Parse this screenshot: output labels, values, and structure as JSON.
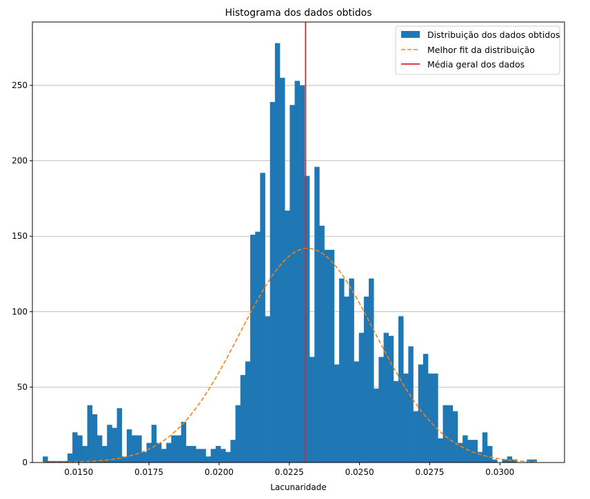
{
  "chart_data": {
    "type": "bar",
    "title": "Histograma dos dados obtidos",
    "xlabel": "Lacunaridade",
    "ylabel": "",
    "xlim": [
      0.01335,
      0.0323
    ],
    "ylim": [
      0,
      292
    ],
    "x_ticks": [
      0.015,
      0.0175,
      0.02,
      0.0225,
      0.025,
      0.0275,
      0.03
    ],
    "x_tick_labels": [
      "0.0150",
      "0.0175",
      "0.0200",
      "0.0225",
      "0.0250",
      "0.0275",
      "0.0300"
    ],
    "y_ticks": [
      0,
      50,
      100,
      150,
      200,
      250
    ],
    "y_tick_labels": [
      "0",
      "50",
      "100",
      "150",
      "200",
      "250"
    ],
    "grid": "horizontal",
    "legend_position": "top-right",
    "colors": {
      "bars": "#1f77b4",
      "fit": "#ff7f0e",
      "mean": "#d62728"
    },
    "histogram": {
      "name": "Distribuição dos dados obtidos",
      "bin_start": 0.01372,
      "bin_width": 0.0001759,
      "counts": [
        4,
        1,
        1,
        1,
        1,
        6,
        20,
        18,
        11,
        38,
        32,
        18,
        11,
        25,
        23,
        36,
        4,
        22,
        18,
        18,
        7,
        13,
        25,
        13,
        9,
        13,
        18,
        18,
        27,
        11,
        11,
        9,
        9,
        4,
        9,
        11,
        9,
        7,
        15,
        38,
        58,
        67,
        151,
        153,
        192,
        97,
        239,
        278,
        255,
        167,
        237,
        253,
        250,
        190,
        70,
        196,
        157,
        141,
        141,
        65,
        122,
        110,
        122,
        67,
        86,
        110,
        122,
        49,
        70,
        86,
        84,
        54,
        97,
        59,
        77,
        34,
        65,
        72,
        59,
        59,
        16,
        38,
        38,
        34,
        13,
        18,
        15,
        15,
        7,
        20,
        11,
        2,
        0,
        2,
        4,
        2,
        0,
        0,
        2,
        2
      ]
    },
    "fit": {
      "name": "Melhor fit da distribuição",
      "style": "dashed",
      "mean": 0.02315,
      "sigma": 0.0024,
      "peak": 142,
      "x_range": [
        0.01372,
        0.03131
      ]
    },
    "mean_line": {
      "name": "Média geral dos dados",
      "x": 0.02308
    }
  }
}
